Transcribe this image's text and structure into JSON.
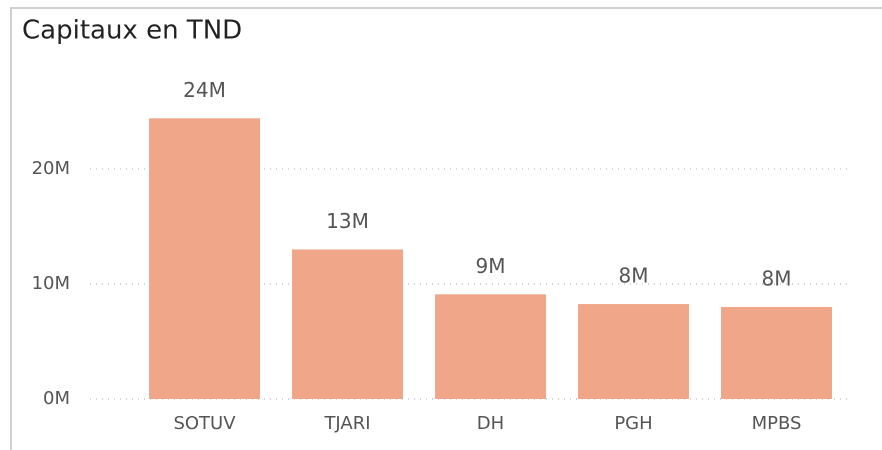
{
  "chart_data": {
    "type": "bar",
    "title": "Capitaux en TND",
    "categories": [
      "SOTUV",
      "TJARI",
      "DH",
      "PGH",
      "MPBS"
    ],
    "values": [
      24400000,
      13000000,
      9100000,
      8250000,
      8000000
    ],
    "value_labels": [
      "24M",
      "13M",
      "9M",
      "8M",
      "8M"
    ],
    "color": "#f0a688",
    "ylim": [
      0,
      28600000
    ],
    "yticks": [
      {
        "value": 0,
        "label": "0M"
      },
      {
        "value": 10000000,
        "label": "10M"
      },
      {
        "value": 20000000,
        "label": "20M"
      }
    ],
    "grid": true
  }
}
